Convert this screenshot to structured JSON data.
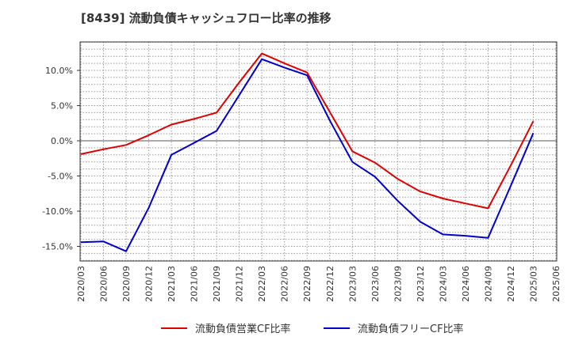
{
  "chart_data": {
    "type": "line",
    "title": "[8439]  流動負債キャッシュフロー比率の推移",
    "xlabel": "",
    "ylabel": "",
    "x": [
      "2020/03",
      "2020/06",
      "2020/09",
      "2020/12",
      "2021/03",
      "2021/06",
      "2021/09",
      "2021/12",
      "2022/03",
      "2022/06",
      "2022/09",
      "2022/12",
      "2023/03",
      "2023/06",
      "2023/09",
      "2023/12",
      "2024/03",
      "2024/06",
      "2024/09",
      "2024/12",
      "2025/03",
      "2025/06"
    ],
    "ylim": [
      -17,
      14
    ],
    "yticks": [
      10,
      5,
      0,
      -5,
      -10,
      -15
    ],
    "ytick_labels": [
      "10.0%",
      "5.0%",
      "0.0%",
      "-5.0%",
      "-10.0%",
      "-15.0%"
    ],
    "grid": true,
    "legend_position": "bottom",
    "series": [
      {
        "name": "流動負債営業CF比率",
        "color": "#e00000",
        "values": [
          -1.9,
          -1.2,
          -0.6,
          0.8,
          2.3,
          3.1,
          4.0,
          8.3,
          12.4,
          11.0,
          9.7,
          4.1,
          -1.5,
          -3.1,
          -5.4,
          -7.2,
          -8.2,
          -8.9,
          -9.6,
          -3.5,
          2.8,
          null
        ]
      },
      {
        "name": "流動負債フリーCF比率",
        "color": "#0000cc",
        "values": [
          -14.4,
          -14.3,
          -15.7,
          -9.5,
          -2.0,
          -0.3,
          1.4,
          6.5,
          11.6,
          10.4,
          9.3,
          2.9,
          -3.0,
          -5.1,
          -8.5,
          -11.5,
          -13.3,
          -13.5,
          -13.8,
          -6.4,
          1.1,
          null
        ]
      }
    ]
  }
}
